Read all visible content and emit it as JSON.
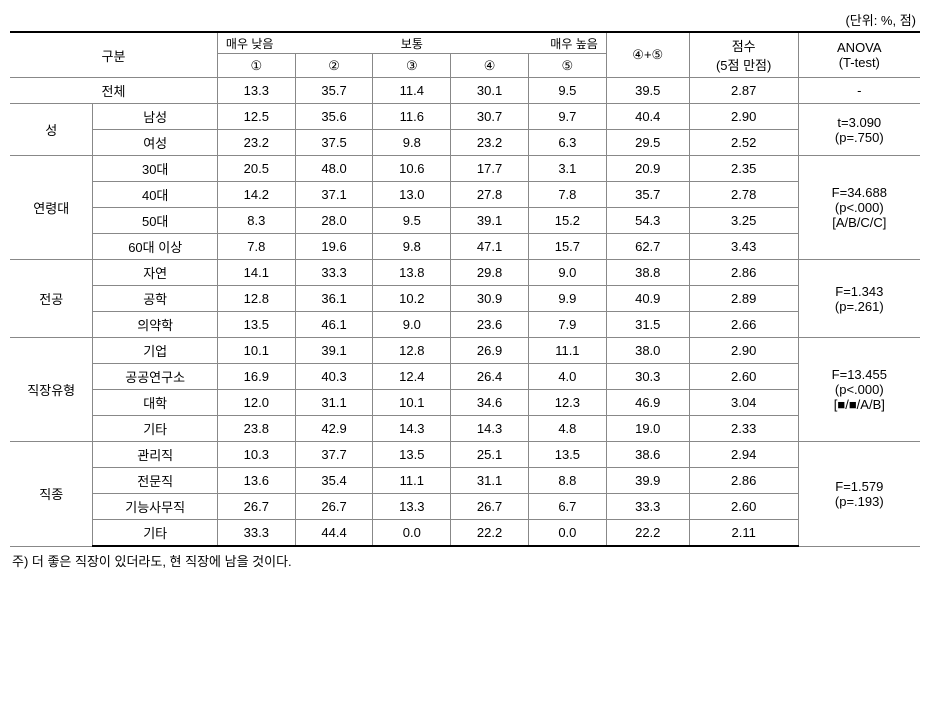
{
  "unit_label": "(단위: %, 점)",
  "headers": {
    "gubun": "구분",
    "scale_low": "매우 낮음",
    "scale_mid": "보통",
    "scale_high": "매우 높음",
    "col1": "①",
    "col2": "②",
    "col3": "③",
    "col4": "④",
    "col5": "⑤",
    "sum45": "④+⑤",
    "score_line1": "점수",
    "score_line2": "(5점 만점)",
    "anova_line1": "ANOVA",
    "anova_line2": "(T-test)"
  },
  "total": {
    "label": "전체",
    "v": [
      "13.3",
      "35.7",
      "11.4",
      "30.1",
      "9.5",
      "39.5",
      "2.87",
      "-"
    ]
  },
  "groups": [
    {
      "name": "성",
      "anova": [
        "t=3.090",
        "(p=.750)"
      ],
      "rows": [
        {
          "label": "남성",
          "v": [
            "12.5",
            "35.6",
            "11.6",
            "30.7",
            "9.7",
            "40.4",
            "2.90"
          ]
        },
        {
          "label": "여성",
          "v": [
            "23.2",
            "37.5",
            "9.8",
            "23.2",
            "6.3",
            "29.5",
            "2.52"
          ]
        }
      ]
    },
    {
      "name": "연령대",
      "anova": [
        "F=34.688",
        "(p<.000)",
        "[A/B/C/C]"
      ],
      "rows": [
        {
          "label": "30대",
          "v": [
            "20.5",
            "48.0",
            "10.6",
            "17.7",
            "3.1",
            "20.9",
            "2.35"
          ]
        },
        {
          "label": "40대",
          "v": [
            "14.2",
            "37.1",
            "13.0",
            "27.8",
            "7.8",
            "35.7",
            "2.78"
          ]
        },
        {
          "label": "50대",
          "v": [
            "8.3",
            "28.0",
            "9.5",
            "39.1",
            "15.2",
            "54.3",
            "3.25"
          ]
        },
        {
          "label": "60대 이상",
          "v": [
            "7.8",
            "19.6",
            "9.8",
            "47.1",
            "15.7",
            "62.7",
            "3.43"
          ]
        }
      ]
    },
    {
      "name": "전공",
      "anova": [
        "F=1.343",
        "(p=.261)"
      ],
      "rows": [
        {
          "label": "자연",
          "v": [
            "14.1",
            "33.3",
            "13.8",
            "29.8",
            "9.0",
            "38.8",
            "2.86"
          ]
        },
        {
          "label": "공학",
          "v": [
            "12.8",
            "36.1",
            "10.2",
            "30.9",
            "9.9",
            "40.9",
            "2.89"
          ]
        },
        {
          "label": "의약학",
          "v": [
            "13.5",
            "46.1",
            "9.0",
            "23.6",
            "7.9",
            "31.5",
            "2.66"
          ]
        }
      ]
    },
    {
      "name": "직장유형",
      "anova": [
        "F=13.455",
        "(p<.000)",
        "[■/■/A/B]"
      ],
      "rows": [
        {
          "label": "기업",
          "v": [
            "10.1",
            "39.1",
            "12.8",
            "26.9",
            "11.1",
            "38.0",
            "2.90"
          ]
        },
        {
          "label": "공공연구소",
          "v": [
            "16.9",
            "40.3",
            "12.4",
            "26.4",
            "4.0",
            "30.3",
            "2.60"
          ]
        },
        {
          "label": "대학",
          "v": [
            "12.0",
            "31.1",
            "10.1",
            "34.6",
            "12.3",
            "46.9",
            "3.04"
          ]
        },
        {
          "label": "기타",
          "v": [
            "23.8",
            "42.9",
            "14.3",
            "14.3",
            "4.8",
            "19.0",
            "2.33"
          ]
        }
      ]
    },
    {
      "name": "직종",
      "anova": [
        "F=1.579",
        "(p=.193)"
      ],
      "rows": [
        {
          "label": "관리직",
          "v": [
            "10.3",
            "37.7",
            "13.5",
            "25.1",
            "13.5",
            "38.6",
            "2.94"
          ]
        },
        {
          "label": "전문직",
          "v": [
            "13.6",
            "35.4",
            "11.1",
            "31.1",
            "8.8",
            "39.9",
            "2.86"
          ]
        },
        {
          "label": "기능사무직",
          "v": [
            "26.7",
            "26.7",
            "13.3",
            "26.7",
            "6.7",
            "33.3",
            "2.60"
          ]
        },
        {
          "label": "기타",
          "v": [
            "33.3",
            "44.4",
            "0.0",
            "22.2",
            "0.0",
            "22.2",
            "2.11"
          ]
        }
      ]
    }
  ],
  "footnote": "주) 더 좋은 직장이 있더라도, 현 직장에 남을 것이다.",
  "styling": {
    "border_color_heavy": "#000000",
    "border_color_light": "#888888",
    "background_color": "#ffffff",
    "text_color": "#000000",
    "body_fontsize": 13,
    "header_fontsize": 13,
    "scale_fontsize": 12,
    "font_family": "Malgun Gothic",
    "col_widths": {
      "cat1": 64,
      "cat2": 96,
      "num": 60,
      "sum": 64,
      "score": 84,
      "anova": 94
    }
  }
}
